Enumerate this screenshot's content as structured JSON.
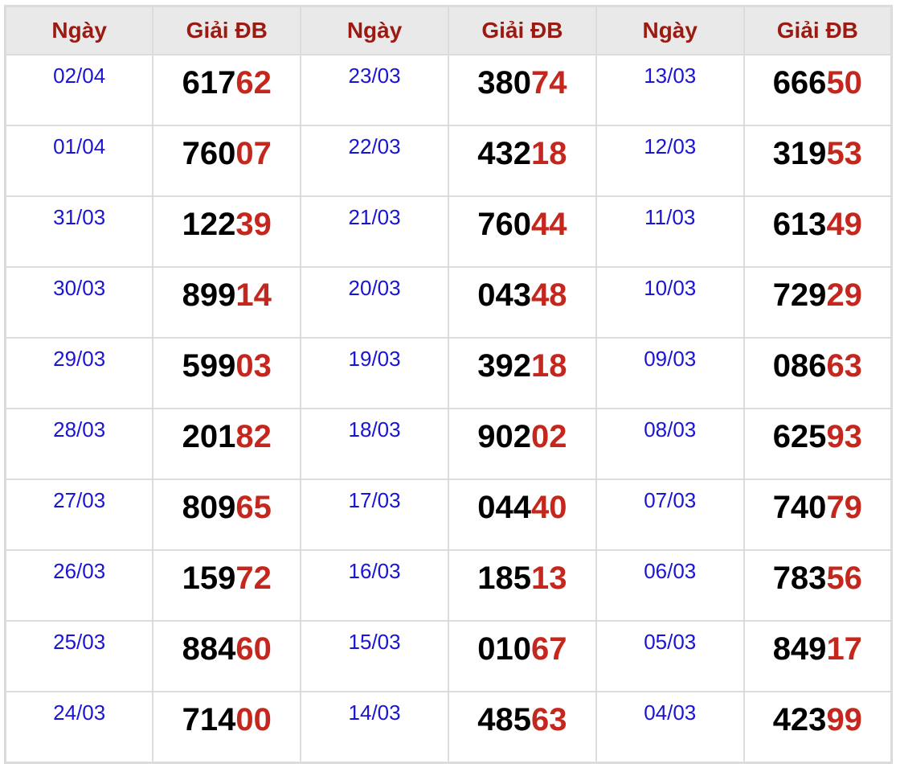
{
  "headers": [
    "Ngày",
    "Giải ĐB",
    "Ngày",
    "Giải ĐB",
    "Ngày",
    "Giải ĐB"
  ],
  "colors": {
    "header_text": "#9b1a12",
    "date": "#1a14d6",
    "tail": "#c4271d",
    "header_bg": "#e9e9e9"
  },
  "rows": [
    [
      {
        "date": "02/04",
        "head": "617",
        "tail": "62"
      },
      {
        "date": "23/03",
        "head": "380",
        "tail": "74"
      },
      {
        "date": "13/03",
        "head": "666",
        "tail": "50"
      }
    ],
    [
      {
        "date": "01/04",
        "head": "760",
        "tail": "07"
      },
      {
        "date": "22/03",
        "head": "432",
        "tail": "18"
      },
      {
        "date": "12/03",
        "head": "319",
        "tail": "53"
      }
    ],
    [
      {
        "date": "31/03",
        "head": "122",
        "tail": "39"
      },
      {
        "date": "21/03",
        "head": "760",
        "tail": "44"
      },
      {
        "date": "11/03",
        "head": "613",
        "tail": "49"
      }
    ],
    [
      {
        "date": "30/03",
        "head": "899",
        "tail": "14"
      },
      {
        "date": "20/03",
        "head": "043",
        "tail": "48"
      },
      {
        "date": "10/03",
        "head": "729",
        "tail": "29"
      }
    ],
    [
      {
        "date": "29/03",
        "head": "599",
        "tail": "03"
      },
      {
        "date": "19/03",
        "head": "392",
        "tail": "18"
      },
      {
        "date": "09/03",
        "head": "086",
        "tail": "63"
      }
    ],
    [
      {
        "date": "28/03",
        "head": "201",
        "tail": "82"
      },
      {
        "date": "18/03",
        "head": "902",
        "tail": "02"
      },
      {
        "date": "08/03",
        "head": "625",
        "tail": "93"
      }
    ],
    [
      {
        "date": "27/03",
        "head": "809",
        "tail": "65"
      },
      {
        "date": "17/03",
        "head": "044",
        "tail": "40"
      },
      {
        "date": "07/03",
        "head": "740",
        "tail": "79"
      }
    ],
    [
      {
        "date": "26/03",
        "head": "159",
        "tail": "72"
      },
      {
        "date": "16/03",
        "head": "185",
        "tail": "13"
      },
      {
        "date": "06/03",
        "head": "783",
        "tail": "56"
      }
    ],
    [
      {
        "date": "25/03",
        "head": "884",
        "tail": "60"
      },
      {
        "date": "15/03",
        "head": "010",
        "tail": "67"
      },
      {
        "date": "05/03",
        "head": "849",
        "tail": "17"
      }
    ],
    [
      {
        "date": "24/03",
        "head": "714",
        "tail": "00"
      },
      {
        "date": "14/03",
        "head": "485",
        "tail": "63"
      },
      {
        "date": "04/03",
        "head": "423",
        "tail": "99"
      }
    ]
  ]
}
